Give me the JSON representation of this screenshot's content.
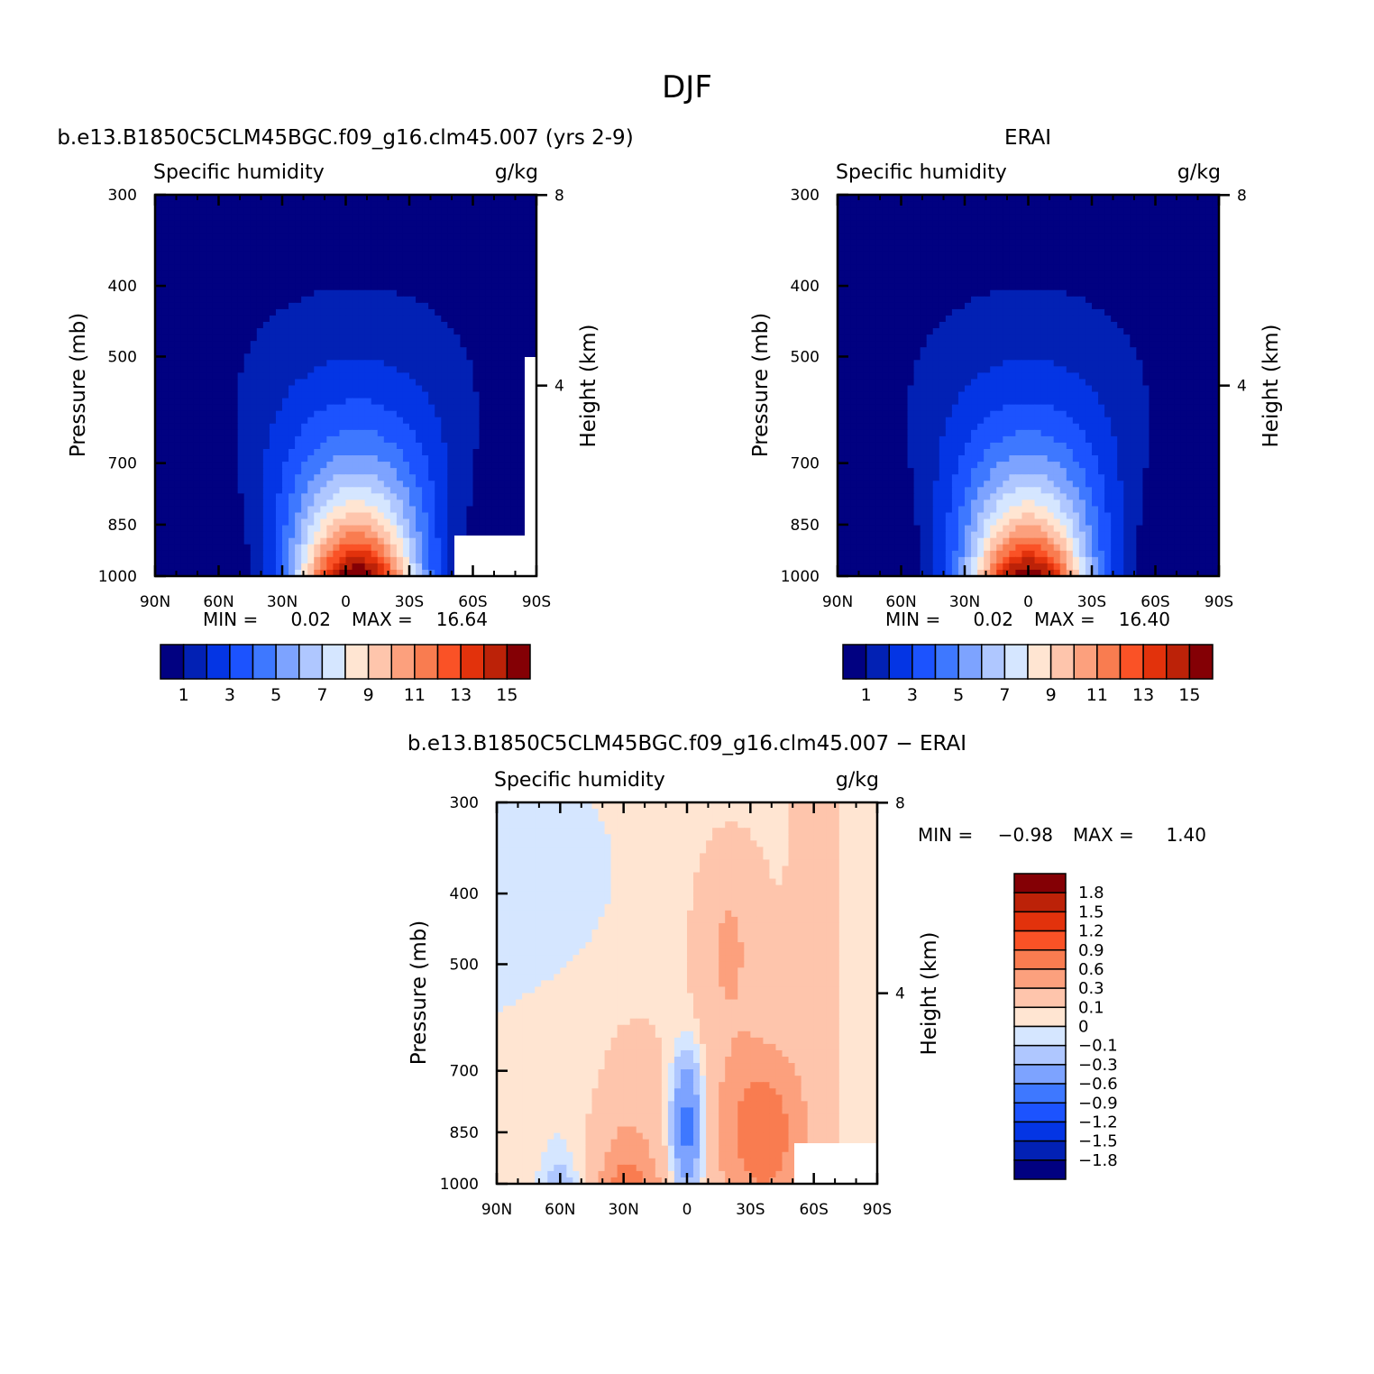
{
  "page": {
    "title": "DJF",
    "min_label": "MIN =",
    "max_label": "MAX ="
  },
  "colors": {
    "absolute_palette": [
      "#010181",
      "#0221B4",
      "#0435E4",
      "#1C53FE",
      "#3E78FF",
      "#7DA3FF",
      "#AFC7FF",
      "#D5E6FF",
      "#FFE5D2",
      "#FEC5AC",
      "#FCA07D",
      "#F97C50",
      "#FA5226",
      "#E2320C",
      "#BC2208",
      "#840005"
    ],
    "difference_palette": [
      "#010181",
      "#0221B4",
      "#0435E4",
      "#1C53FE",
      "#3E78FF",
      "#7DA3FF",
      "#AFC7FF",
      "#D5E6FF",
      "#FFE5D2",
      "#FEC5AC",
      "#FCA07D",
      "#F97C50",
      "#FA5226",
      "#E2320C",
      "#BC2208",
      "#840005"
    ],
    "missing": "#FFFFFF"
  },
  "chart_data": [
    {
      "id": "model",
      "type": "contour",
      "title": "b.e13.B1850C5CLM45BGC.f09_g16.clm45.007 (yrs 2-9)",
      "variable_label": "Specific humidity",
      "units": "g/kg",
      "ylabel": "Pressure (mb)",
      "y2label": "Height (km)",
      "x_ticks": [
        "90N",
        "60N",
        "30N",
        "0",
        "30S",
        "60S",
        "90S"
      ],
      "y_ticks": [
        "300",
        "400",
        "500",
        "700",
        "850",
        "1000"
      ],
      "y2_ticks": [
        "8",
        "4"
      ],
      "xlim": [
        90,
        -90
      ],
      "ylim": [
        1000,
        300
      ],
      "min": "0.02",
      "max": "16.64",
      "peak": {
        "lat": -5,
        "value": 16.64
      },
      "colorbar_labels": [
        "1",
        "3",
        "5",
        "7",
        "9",
        "11",
        "13",
        "15"
      ],
      "levels": [
        1,
        2,
        3,
        4,
        5,
        6,
        7,
        8,
        9,
        10,
        11,
        12,
        13,
        14,
        15
      ]
    },
    {
      "id": "obs",
      "type": "contour",
      "title": "ERAI",
      "variable_label": "Specific humidity",
      "units": "g/kg",
      "ylabel": "Pressure (mb)",
      "y2label": "Height (km)",
      "x_ticks": [
        "90N",
        "60N",
        "30N",
        "0",
        "30S",
        "60S",
        "90S"
      ],
      "y_ticks": [
        "300",
        "400",
        "500",
        "700",
        "850",
        "1000"
      ],
      "y2_ticks": [
        "8",
        "4"
      ],
      "xlim": [
        90,
        -90
      ],
      "ylim": [
        1000,
        300
      ],
      "min": "0.02",
      "max": "16.40",
      "peak": {
        "lat": 0,
        "value": 16.4
      },
      "colorbar_labels": [
        "1",
        "3",
        "5",
        "7",
        "9",
        "11",
        "13",
        "15"
      ],
      "levels": [
        1,
        2,
        3,
        4,
        5,
        6,
        7,
        8,
        9,
        10,
        11,
        12,
        13,
        14,
        15
      ]
    },
    {
      "id": "diff",
      "type": "contour",
      "title": "b.e13.B1850C5CLM45BGC.f09_g16.clm45.007 − ERAI",
      "variable_label": "Specific humidity",
      "units": "g/kg",
      "ylabel": "Pressure (mb)",
      "y2label": "Height (km)",
      "x_ticks": [
        "90N",
        "60N",
        "30N",
        "0",
        "30S",
        "60S",
        "90S"
      ],
      "y_ticks": [
        "300",
        "400",
        "500",
        "700",
        "850",
        "1000"
      ],
      "y2_ticks": [
        "8",
        "4"
      ],
      "xlim": [
        90,
        -90
      ],
      "ylim": [
        1000,
        300
      ],
      "min": "−0.98",
      "max": "1.40",
      "colorbar_labels": [
        "1.8",
        "1.5",
        "1.2",
        "0.9",
        "0.6",
        "0.3",
        "0.1",
        "0",
        "−0.1",
        "−0.3",
        "−0.6",
        "−0.9",
        "−1.2",
        "−1.5",
        "−1.8"
      ],
      "levels": [
        -1.8,
        -1.5,
        -1.2,
        -0.9,
        -0.6,
        -0.3,
        -0.1,
        0,
        0.1,
        0.3,
        0.6,
        0.9,
        1.2,
        1.5,
        1.8
      ]
    }
  ]
}
